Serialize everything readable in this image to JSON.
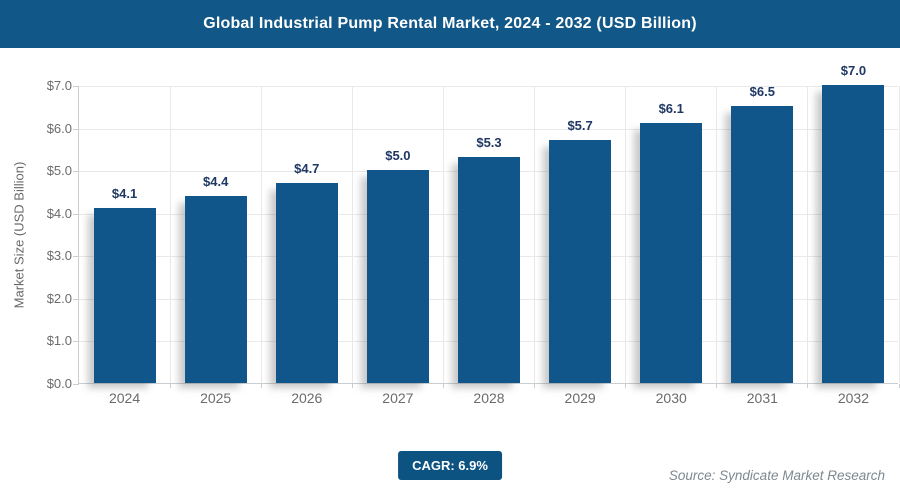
{
  "header": {
    "title": "Global Industrial Pump Rental Market, 2024 - 2032 (USD Billion)"
  },
  "chart_data": {
    "type": "bar",
    "title": "Global Industrial Pump Rental Market, 2024 - 2032 (USD Billion)",
    "categories": [
      "2024",
      "2025",
      "2026",
      "2027",
      "2028",
      "2029",
      "2030",
      "2031",
      "2032"
    ],
    "values": [
      4.1,
      4.4,
      4.7,
      5.0,
      5.3,
      5.7,
      6.1,
      6.5,
      7.0
    ],
    "value_labels": [
      "$4.1",
      "$4.4",
      "$4.7",
      "$5.0",
      "$5.3",
      "$5.7",
      "$6.1",
      "$6.5",
      "$7.0"
    ],
    "xlabel": "",
    "ylabel": "Market Size (USD Billion)",
    "ylim": [
      0,
      7
    ],
    "ytick_step": 1,
    "ytick_labels": [
      "$0.0",
      "$1.0",
      "$2.0",
      "$3.0",
      "$4.0",
      "$5.0",
      "$6.0",
      "$7.0"
    ],
    "grid": true,
    "legend": false,
    "bar_color": "#10568a"
  },
  "footer": {
    "cagr_label": "CAGR: 6.9%",
    "source": "Source: Syndicate Market Research"
  },
  "colors": {
    "header_bg": "#115787",
    "bar": "#10568a",
    "badge_bg": "#0d5382",
    "value_label_text": "#1f3864",
    "axis_text": "#6b6b6b",
    "gridline": "#e9e9e9"
  }
}
